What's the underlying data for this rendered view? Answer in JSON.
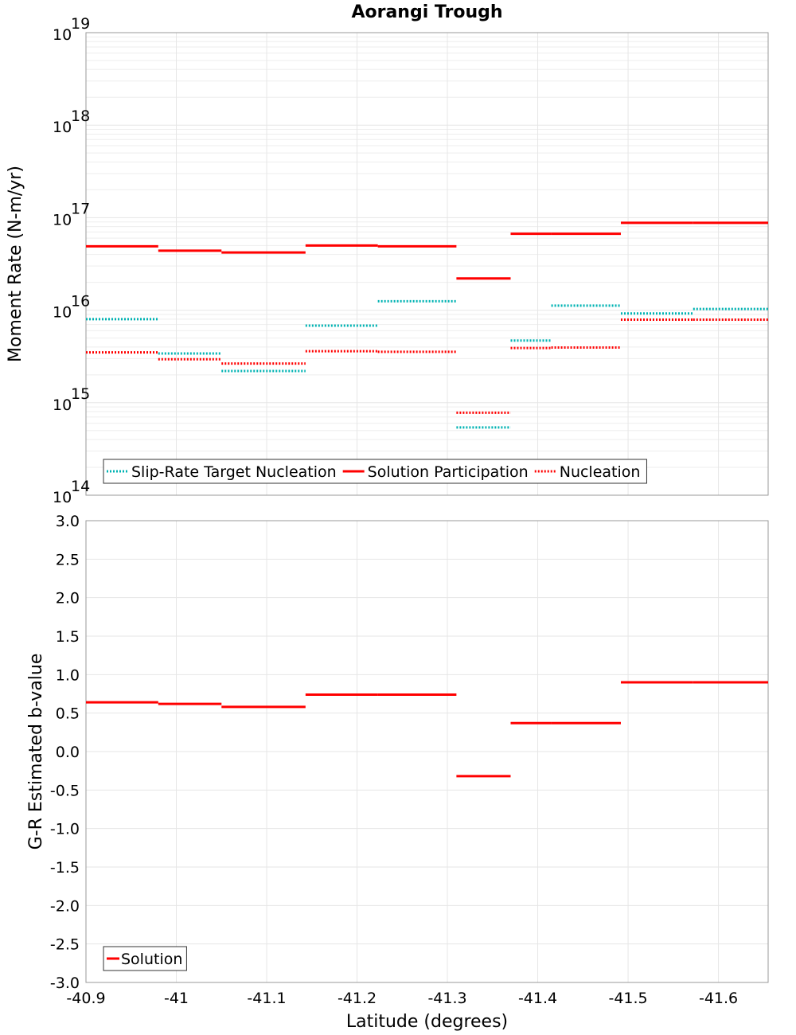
{
  "chart_data": [
    {
      "type": "line",
      "panel": "top",
      "title": "Aorangi Trough",
      "ylabel": "Moment Rate (N-m/yr)",
      "xlabel": "",
      "yscale": "log",
      "ylim_exponents": [
        14,
        19
      ],
      "ytick_base": "10",
      "ytick_exponents": [
        "19",
        "18",
        "17",
        "16",
        "15",
        "14"
      ],
      "xlim": [
        -40.9,
        -41.655
      ],
      "grid": true,
      "legend_position": "bottom-left",
      "series": [
        {
          "name": "Slip-Rate Target Nucleation",
          "style": "dotted",
          "color": "#00b3b3",
          "segments": [
            {
              "x": [
                -40.9,
                -40.98
              ],
              "y": 8000000000000000.0
            },
            {
              "x": [
                -40.98,
                -41.05
              ],
              "y": 3400000000000000.0
            },
            {
              "x": [
                -41.05,
                -41.143
              ],
              "y": 2200000000000000.0
            },
            {
              "x": [
                -41.143,
                -41.223
              ],
              "y": 6800000000000000.0
            },
            {
              "x": [
                -41.223,
                -41.31
              ],
              "y": 1.25e+16
            },
            {
              "x": [
                -41.37,
                -41.415
              ],
              "y": 4700000000000000.0
            },
            {
              "x": [
                -41.415,
                -41.492
              ],
              "y": 1.12e+16
            },
            {
              "x": [
                -41.492,
                -41.572
              ],
              "y": 9200000000000000.0
            },
            {
              "x": [
                -41.572,
                -41.655
              ],
              "y": 1.03e+16
            },
            {
              "x": [
                -41.31,
                -41.37
              ],
              "y": 540000000000000.0
            }
          ]
        },
        {
          "name": "Solution Participation",
          "style": "solid",
          "color": "#ff0000",
          "segments": [
            {
              "x": [
                -40.9,
                -40.98
              ],
              "y": 4.9e+16
            },
            {
              "x": [
                -40.98,
                -41.05
              ],
              "y": 4.4e+16
            },
            {
              "x": [
                -41.05,
                -41.143
              ],
              "y": 4.2e+16
            },
            {
              "x": [
                -41.143,
                -41.223
              ],
              "y": 5e+16
            },
            {
              "x": [
                -41.223,
                -41.31
              ],
              "y": 4.9e+16
            },
            {
              "x": [
                -41.31,
                -41.37
              ],
              "y": 2.2e+16
            },
            {
              "x": [
                -41.37,
                -41.415
              ],
              "y": 6.7e+16
            },
            {
              "x": [
                -41.415,
                -41.492
              ],
              "y": 6.7e+16
            },
            {
              "x": [
                -41.492,
                -41.572
              ],
              "y": 8.8e+16
            },
            {
              "x": [
                -41.572,
                -41.655
              ],
              "y": 8.8e+16
            }
          ]
        },
        {
          "name": "Nucleation",
          "style": "dotted",
          "color": "#ff0000",
          "segments": [
            {
              "x": [
                -40.9,
                -40.98
              ],
              "y": 3500000000000000.0
            },
            {
              "x": [
                -40.98,
                -41.05
              ],
              "y": 2950000000000000.0
            },
            {
              "x": [
                -41.05,
                -41.143
              ],
              "y": 2650000000000000.0
            },
            {
              "x": [
                -41.143,
                -41.223
              ],
              "y": 3600000000000000.0
            },
            {
              "x": [
                -41.223,
                -41.31
              ],
              "y": 3550000000000000.0
            },
            {
              "x": [
                -41.31,
                -41.37
              ],
              "y": 780000000000000.0
            },
            {
              "x": [
                -41.37,
                -41.415
              ],
              "y": 3900000000000000.0
            },
            {
              "x": [
                -41.415,
                -41.492
              ],
              "y": 3950000000000000.0
            },
            {
              "x": [
                -41.492,
                -41.572
              ],
              "y": 7900000000000000.0
            },
            {
              "x": [
                -41.572,
                -41.655
              ],
              "y": 7900000000000000.0
            }
          ]
        }
      ]
    },
    {
      "type": "line",
      "panel": "bottom",
      "title": "",
      "ylabel": "G-R Estimated b-value",
      "xlabel": "Latitude (degrees)",
      "ylim": [
        -3.0,
        3.0
      ],
      "yticks": [
        "3.0",
        "2.5",
        "2.0",
        "1.5",
        "1.0",
        "0.5",
        "0.0",
        "-0.5",
        "-1.0",
        "-1.5",
        "-2.0",
        "-2.5",
        "-3.0"
      ],
      "xlim": [
        -40.9,
        -41.655
      ],
      "xticks": [
        "-40.9",
        "-41",
        "-41.1",
        "-41.2",
        "-41.3",
        "-41.4",
        "-41.5",
        "-41.6"
      ],
      "grid": true,
      "legend_position": "bottom-left",
      "series": [
        {
          "name": "Solution",
          "style": "solid",
          "color": "#ff0000",
          "segments": [
            {
              "x": [
                -40.9,
                -40.98
              ],
              "y": 0.64
            },
            {
              "x": [
                -40.98,
                -41.05
              ],
              "y": 0.62
            },
            {
              "x": [
                -41.05,
                -41.143
              ],
              "y": 0.58
            },
            {
              "x": [
                -41.143,
                -41.223
              ],
              "y": 0.74
            },
            {
              "x": [
                -41.223,
                -41.31
              ],
              "y": 0.74
            },
            {
              "x": [
                -41.31,
                -41.37
              ],
              "y": -0.32
            },
            {
              "x": [
                -41.37,
                -41.415
              ],
              "y": 0.37
            },
            {
              "x": [
                -41.415,
                -41.492
              ],
              "y": 0.37
            },
            {
              "x": [
                -41.492,
                -41.572
              ],
              "y": 0.9
            },
            {
              "x": [
                -41.572,
                -41.655
              ],
              "y": 0.9
            }
          ]
        }
      ]
    }
  ]
}
